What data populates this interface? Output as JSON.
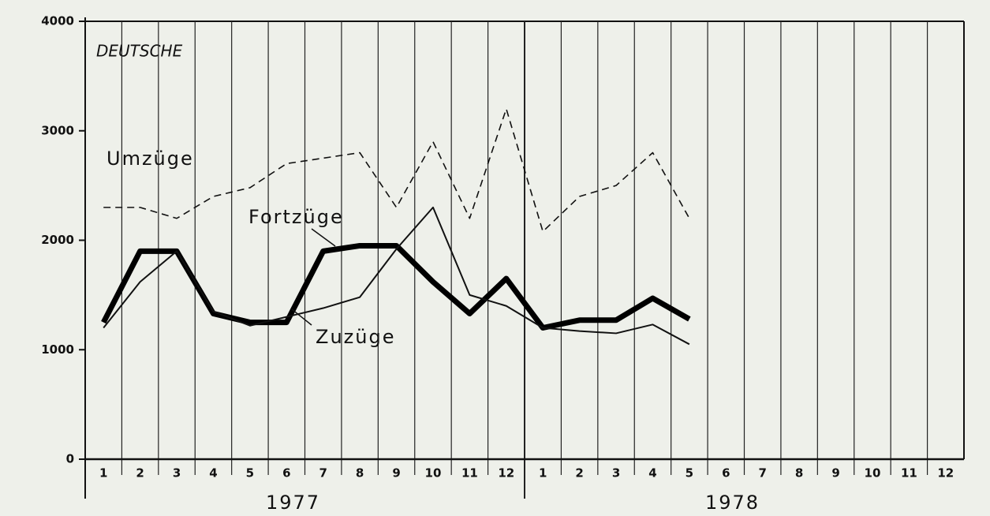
{
  "chart_data": {
    "type": "line",
    "annotation": "DEUTSCHE",
    "categories": [
      "1",
      "2",
      "3",
      "4",
      "5",
      "6",
      "7",
      "8",
      "9",
      "10",
      "11",
      "12",
      "1",
      "2",
      "3",
      "4",
      "5",
      "6",
      "7",
      "8",
      "9",
      "10",
      "11",
      "12"
    ],
    "years": [
      "1977",
      "1978"
    ],
    "series": [
      {
        "name": "Umzüge",
        "color": "#111111",
        "style": "dashed",
        "width": 1.6,
        "values": [
          2300,
          2300,
          2200,
          2400,
          2480,
          2700,
          2750,
          2800,
          2300,
          2900,
          2200,
          3200,
          2080,
          2400,
          2500,
          2800,
          2200,
          null,
          null,
          null,
          null,
          null,
          null,
          null
        ]
      },
      {
        "name": "Fortzüge",
        "color": "#000000",
        "style": "solid",
        "width": 7,
        "values": [
          1250,
          1900,
          1900,
          1330,
          1250,
          1250,
          1900,
          1950,
          1950,
          1620,
          1330,
          1650,
          1200,
          1270,
          1270,
          1470,
          1280,
          null,
          null,
          null,
          null,
          null,
          null,
          null
        ]
      },
      {
        "name": "Zuzüge",
        "color": "#111111",
        "style": "solid",
        "width": 2,
        "values": [
          1200,
          1620,
          1900,
          1350,
          1220,
          1300,
          1380,
          1480,
          1920,
          2300,
          1500,
          1400,
          1200,
          1170,
          1150,
          1230,
          1050,
          null,
          null,
          null,
          null,
          null,
          null,
          null
        ]
      }
    ],
    "ylim": [
      0,
      4000
    ],
    "yticks": [
      0,
      1000,
      2000,
      3000,
      4000
    ],
    "grid": true
  }
}
